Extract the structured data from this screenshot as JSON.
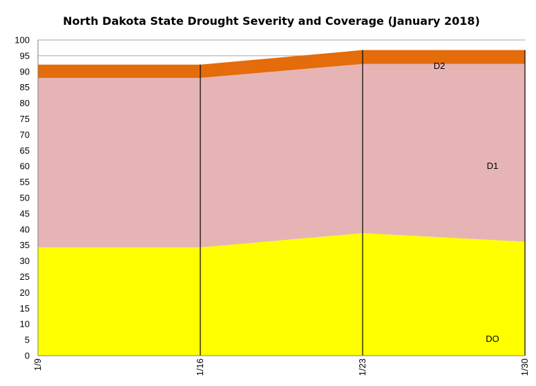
{
  "chart_data": {
    "type": "area",
    "title": "North Dakota State Drought Severity and Coverage (January 2018)",
    "xlabel": "",
    "ylabel": "",
    "categories": [
      "1/9",
      "1/16",
      "1/23",
      "1/30"
    ],
    "ylim": [
      0,
      100
    ],
    "ytick_step": 5,
    "stacked": true,
    "grid": "horizontal",
    "series": [
      {
        "name": "DO",
        "values": [
          34.3,
          34.3,
          38.8,
          36.1
        ],
        "color": "#FFFF00"
      },
      {
        "name": "D1",
        "values": [
          53.7,
          53.7,
          53.6,
          56.3
        ],
        "color": "#E6B4B4"
      },
      {
        "name": "D2",
        "values": [
          4.2,
          4.2,
          4.4,
          4.4
        ],
        "color": "#E46C0A"
      }
    ]
  }
}
